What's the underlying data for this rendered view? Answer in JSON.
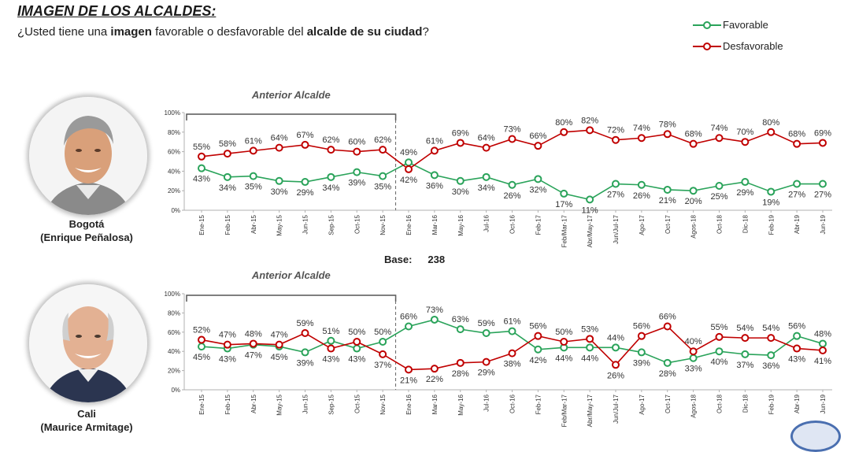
{
  "header": {
    "title": "IMAGEN DE LOS ALCALDES:",
    "subtitle_pre": "¿Usted tiene una ",
    "subtitle_b1": "imagen",
    "subtitle_mid": " favorable o desfavorable del ",
    "subtitle_b2": "alcalde de su ciudad",
    "subtitle_post": "?"
  },
  "legend": {
    "favorable": "Favorable",
    "desfavorable": "Desfavorable"
  },
  "colors": {
    "favorable": "#2aa35a",
    "desfavorable": "#c00000",
    "axis": "#b0b0b0"
  },
  "base": {
    "label": "Base:",
    "value": "238"
  },
  "panels": {
    "bogota": {
      "city": "Bogotá",
      "mayor": "(Enrique Peñalosa)"
    },
    "cali": {
      "city": "Cali",
      "mayor": "(Maurice Armitage)"
    }
  },
  "chart_data": [
    {
      "type": "line",
      "categories": [
        "Ene-15",
        "Feb-15",
        "Abr-15",
        "May-15",
        "Jun-15",
        "Sep-15",
        "Oct-15",
        "Nov-15",
        "Ene-16",
        "Mar-16",
        "May-16",
        "Jul-16",
        "Oct-16",
        "Feb-17",
        "Feb/Mar-17",
        "Abr/May-17",
        "Jun/Jul-17",
        "Ago-17",
        "Oct-17",
        "Agos-18",
        "Oct-18",
        "Dic-18",
        "Feb-19",
        "Abr-19",
        "Jun-19"
      ],
      "y_ticks": [
        "0%",
        "20%",
        "40%",
        "60%",
        "80%",
        "100%"
      ],
      "ylim": [
        0,
        100
      ],
      "annotation": "Anterior Alcalde",
      "annotation_span": [
        "Ene-15",
        "Nov-15"
      ],
      "divider_after": "Nov-15",
      "series": [
        {
          "name": "Favorable",
          "values": [
            43,
            34,
            35,
            30,
            29,
            34,
            39,
            35,
            49,
            36,
            30,
            34,
            26,
            32,
            17,
            11,
            27,
            26,
            21,
            20,
            25,
            29,
            19,
            27,
            27
          ],
          "labels": [
            "43%",
            "34%",
            "35%",
            "30%",
            "29%",
            "34%",
            "39%",
            "35%",
            "49%",
            "36%",
            "30%",
            "34%",
            "26%",
            "32%",
            "17%",
            "11%",
            "27%",
            "26%",
            "21%",
            "20%",
            "25%",
            "29%",
            "19%",
            "27%",
            "27%"
          ]
        },
        {
          "name": "Desfavorable",
          "values": [
            55,
            58,
            61,
            64,
            67,
            62,
            60,
            62,
            42,
            61,
            69,
            64,
            73,
            66,
            80,
            82,
            72,
            74,
            78,
            68,
            74,
            70,
            80,
            68,
            69
          ],
          "labels": [
            "55%",
            "58%",
            "61%",
            "64%",
            "67%",
            "62%",
            "60%",
            "62%",
            "42%",
            "61%",
            "69%",
            "64%",
            "73%",
            "66%",
            "80%",
            "82%",
            "72%",
            "74%",
            "78%",
            "68%",
            "74%",
            "70%",
            "80%",
            "68%",
            "69%"
          ]
        }
      ]
    },
    {
      "type": "line",
      "categories": [
        "Ene-15",
        "Feb-15",
        "Abr-15",
        "May-15",
        "Jun-15",
        "Sep-15",
        "Oct-15",
        "Nov-15",
        "Ene-16",
        "Mar-16",
        "May-16",
        "Jul-16",
        "Oct-16",
        "Feb-17",
        "Feb/Mar-17",
        "Abr/May-17",
        "Jun/Jul-17",
        "Ago-17",
        "Oct-17",
        "Agos-18",
        "Oct-18",
        "Dic-18",
        "Feb-19",
        "Abr-19",
        "Jun-19"
      ],
      "y_ticks": [
        "0%",
        "20%",
        "40%",
        "60%",
        "80%",
        "100%"
      ],
      "ylim": [
        0,
        100
      ],
      "annotation": "Anterior Alcalde",
      "annotation_span": [
        "Ene-15",
        "Nov-15"
      ],
      "divider_after": "Nov-15",
      "series": [
        {
          "name": "Favorable",
          "values": [
            45,
            43,
            47,
            45,
            39,
            51,
            43,
            50,
            66,
            73,
            63,
            59,
            61,
            42,
            44,
            44,
            44,
            39,
            28,
            33,
            40,
            37,
            36,
            56,
            48
          ],
          "labels": [
            "45%",
            "43%",
            "47%",
            "45%",
            "39%",
            "51%",
            "43%",
            "50%",
            "66%",
            "73%",
            "63%",
            "59%",
            "61%",
            "42%",
            "44%",
            "44%",
            "44%",
            "39%",
            "28%",
            "33%",
            "40%",
            "37%",
            "36%",
            "56%",
            "48%"
          ]
        },
        {
          "name": "Desfavorable",
          "values": [
            52,
            47,
            48,
            47,
            59,
            43,
            50,
            37,
            21,
            22,
            28,
            29,
            38,
            56,
            50,
            53,
            26,
            56,
            66,
            40,
            55,
            54,
            54,
            43,
            41
          ],
          "labels": [
            "52%",
            "47%",
            "48%",
            "47%",
            "59%",
            "43%",
            "50%",
            "37%",
            "21%",
            "22%",
            "28%",
            "29%",
            "38%",
            "56%",
            "50%",
            "53%",
            "26%",
            "56%",
            "66%",
            "40%",
            "55%",
            "54%",
            "54%",
            "43%",
            "41%"
          ]
        }
      ]
    }
  ]
}
